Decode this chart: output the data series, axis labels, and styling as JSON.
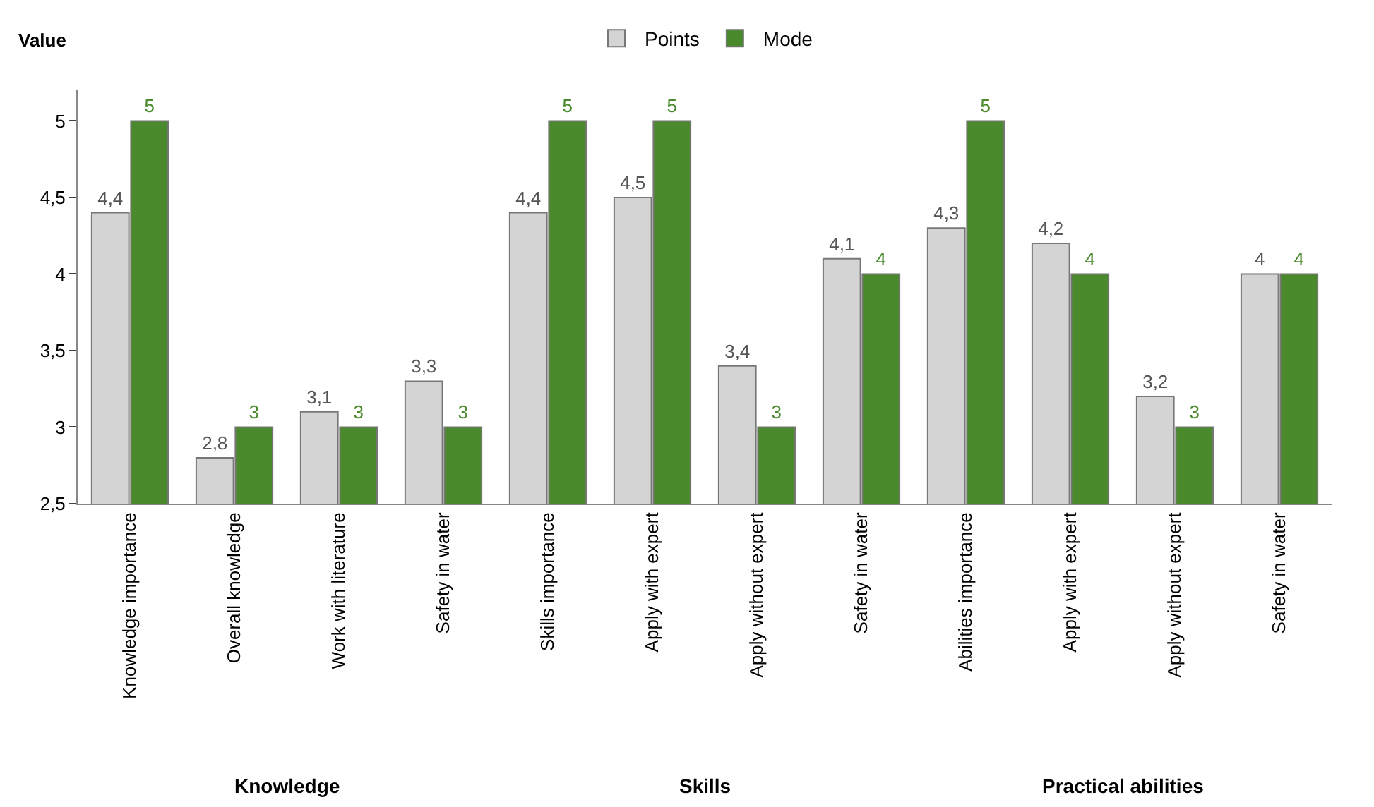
{
  "chart_data": {
    "type": "bar",
    "ylabel": "Value",
    "categories": [
      "Knowledge importance",
      "Overall knowledge",
      "Work with literature",
      "Safety in water",
      "Skills importance",
      "Apply with expert",
      "Apply without expert",
      "Safety in water",
      "Abilities importance",
      "Apply with expert",
      "Apply without expert",
      "Safety in water"
    ],
    "series": [
      {
        "name": "Points",
        "color": "#d4d4d4",
        "values": [
          4.4,
          2.8,
          3.1,
          3.3,
          4.4,
          4.5,
          3.4,
          4.1,
          4.3,
          4.2,
          3.2,
          4
        ],
        "value_labels": [
          "4,4",
          "2,8",
          "3,1",
          "3,3",
          "4,4",
          "4,5",
          "3,4",
          "4,1",
          "4,3",
          "4,2",
          "3,2",
          "4"
        ]
      },
      {
        "name": "Mode",
        "color": "#4a8a2c",
        "values": [
          5,
          3,
          3,
          3,
          5,
          5,
          3,
          4,
          5,
          4,
          3,
          4
        ],
        "value_labels": [
          "5",
          "3",
          "3",
          "3",
          "5",
          "5",
          "3",
          "4",
          "5",
          "4",
          "3",
          "4"
        ]
      }
    ],
    "ylim": [
      2.5,
      5.2
    ],
    "yticks": [
      {
        "value": 2.5,
        "label": "2,5"
      },
      {
        "value": 3,
        "label": "3"
      },
      {
        "value": 3.5,
        "label": "3,5"
      },
      {
        "value": 4,
        "label": "4"
      },
      {
        "value": 4.5,
        "label": "4,5"
      },
      {
        "value": 5,
        "label": "5"
      }
    ],
    "annotations": [
      "Knowledge",
      "Skills",
      "Practical abilities"
    ],
    "grid": false,
    "legend": "top"
  }
}
